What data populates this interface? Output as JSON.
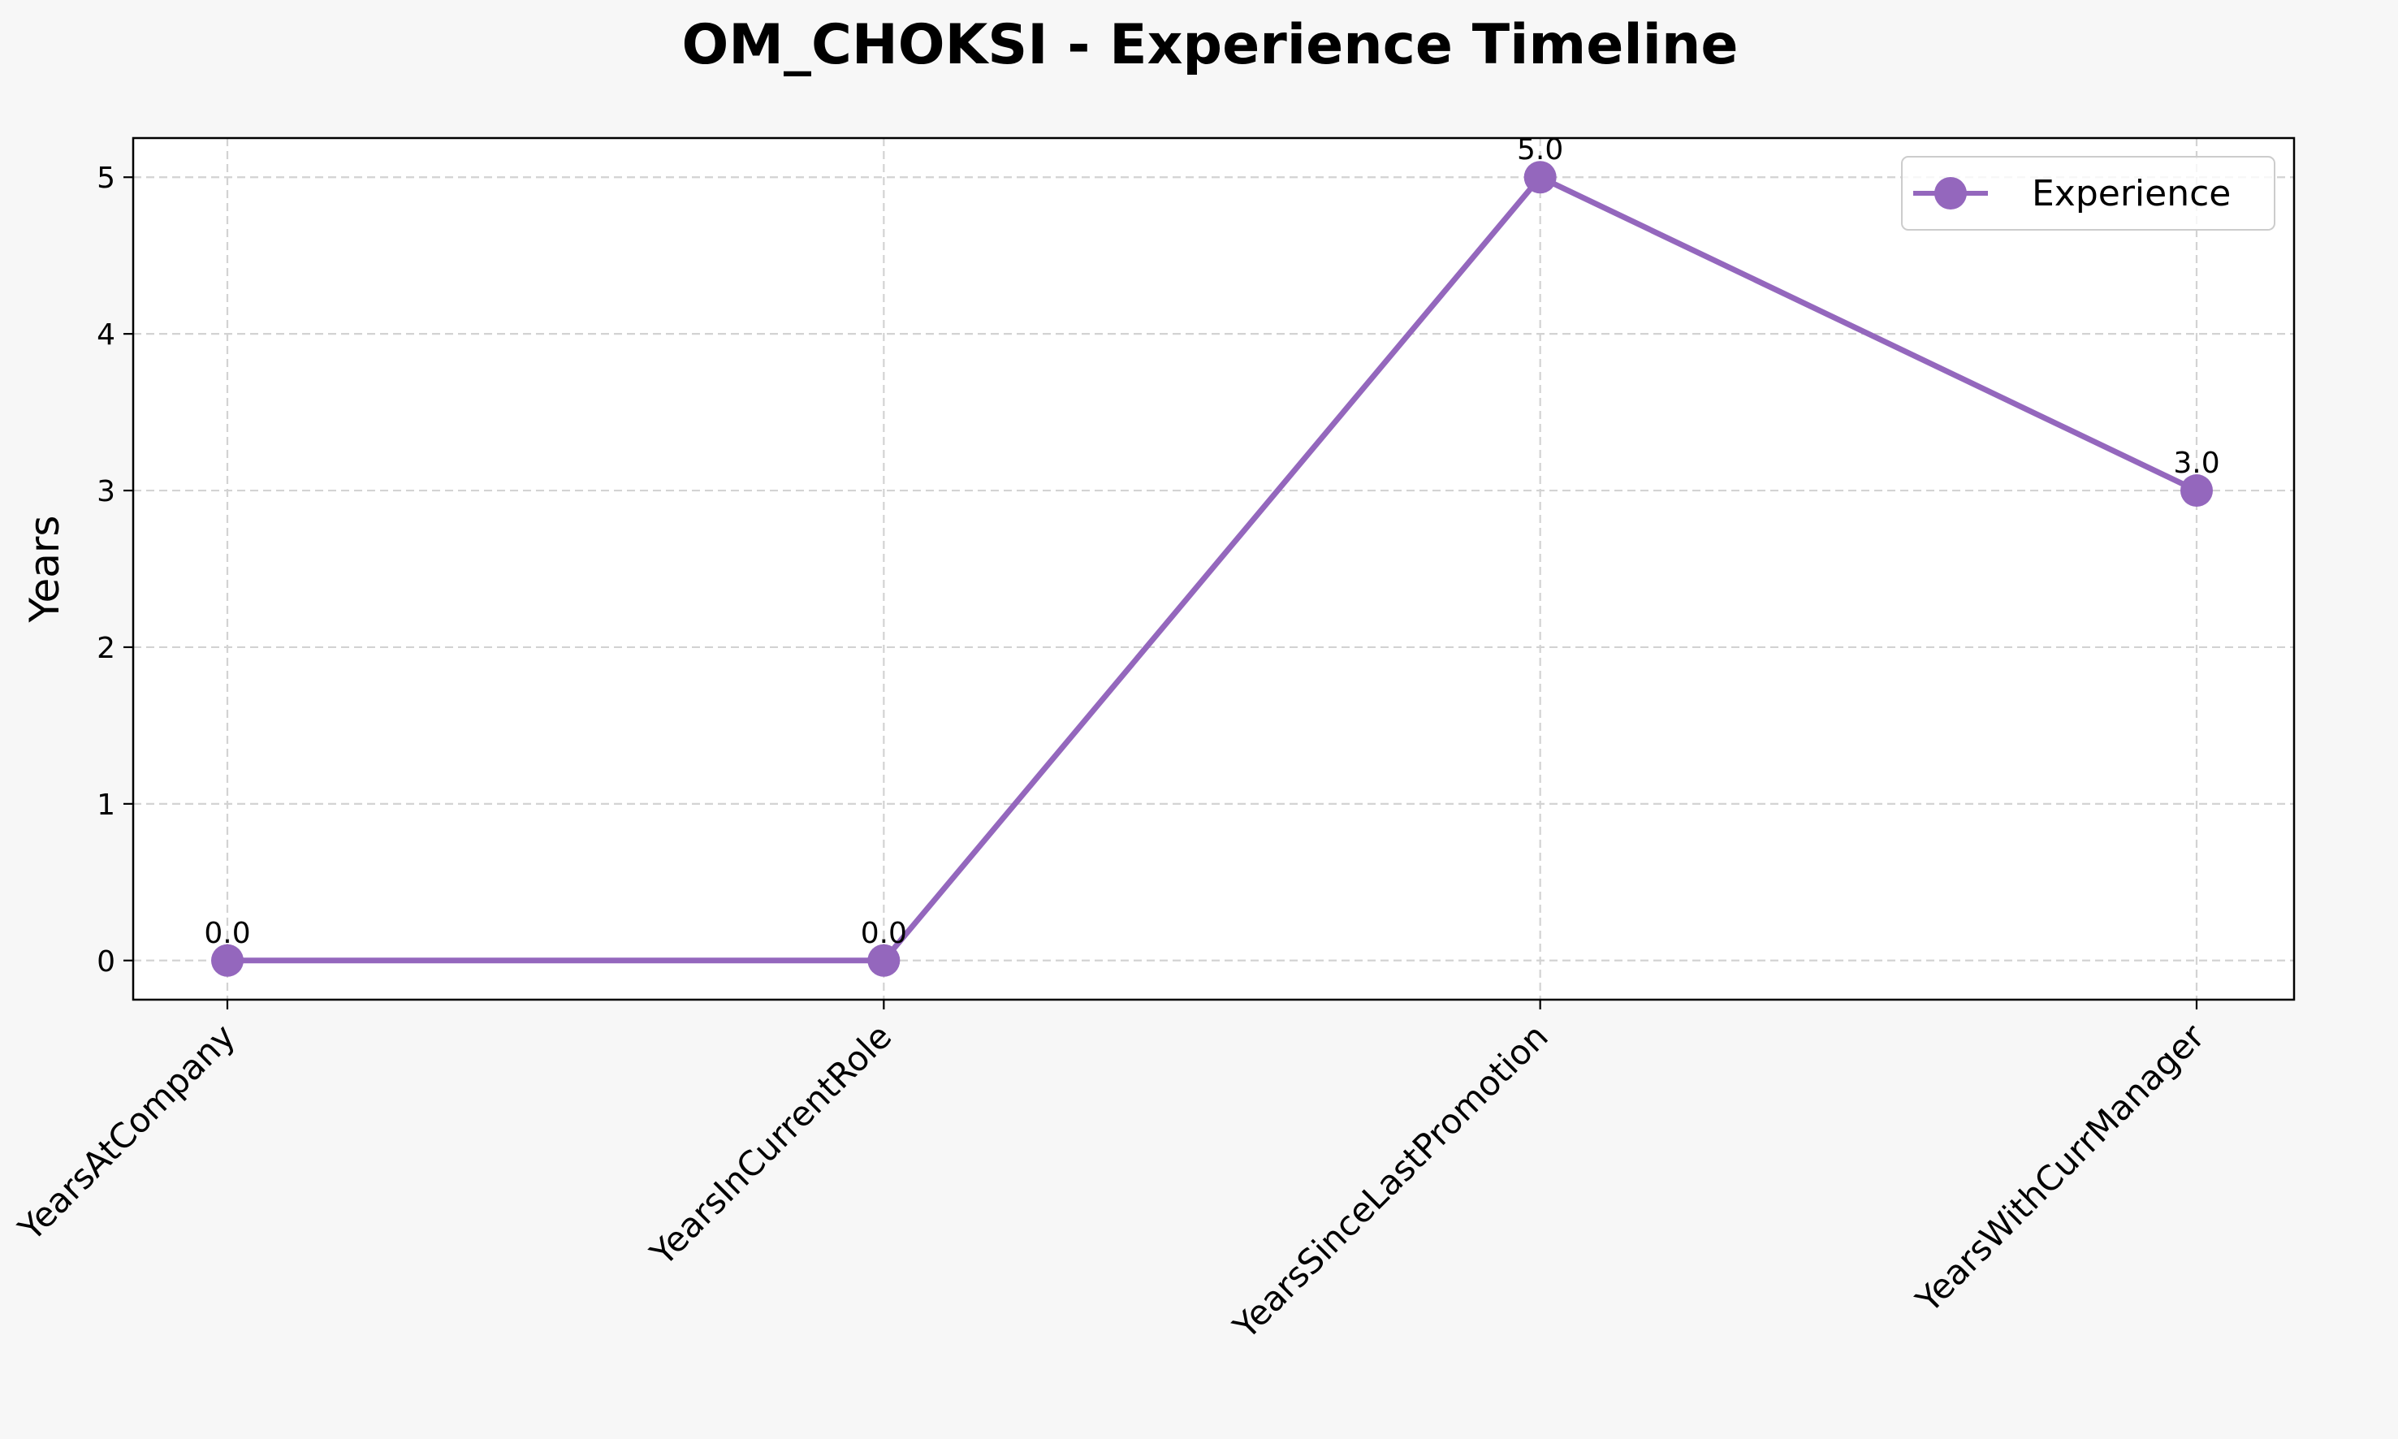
{
  "chart_data": {
    "type": "line",
    "title": "OM_CHOKSI - Experience Timeline",
    "xlabel": "",
    "ylabel": "Years",
    "categories": [
      "YearsAtCompany",
      "YearsInCurrentRole",
      "YearsSinceLastPromotion",
      "YearsWithCurrManager"
    ],
    "series": [
      {
        "name": "Experience",
        "values": [
          0.0,
          0.0,
          5.0,
          3.0
        ],
        "color": "#9467bd",
        "marker": "circle"
      }
    ],
    "data_labels": [
      "0.0",
      "0.0",
      "5.0",
      "3.0"
    ],
    "ylim": [
      -0.25,
      5.25
    ],
    "yticks": [
      0,
      1,
      2,
      3,
      4,
      5
    ],
    "grid": true,
    "grid_style": "dashed",
    "legend_position": "top-right",
    "xtick_rotation": 45
  }
}
